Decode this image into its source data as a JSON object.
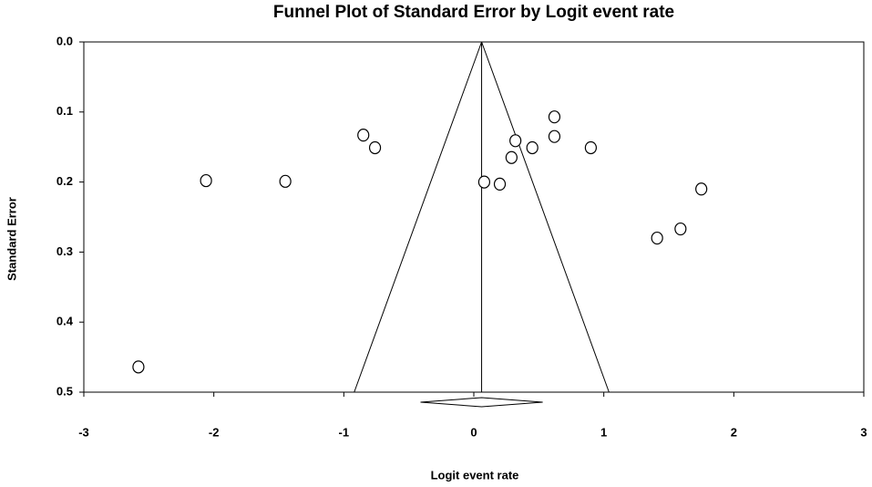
{
  "chart_data": {
    "type": "scatter",
    "title": "Funnel Plot of Standard Error by Logit event rate",
    "x_label": "Logit event rate",
    "y_label": "Standard Error",
    "xlim": [
      -3,
      3
    ],
    "ylim": [
      0,
      0.5
    ],
    "y_inverted": true,
    "xticks": [
      -3,
      -2,
      -1,
      0,
      1,
      2,
      3
    ],
    "yticks": [
      {
        "value": 0,
        "label": "0.0"
      },
      0.1,
      0.2,
      0.3,
      0.4,
      0.5
    ],
    "x": [
      -2.58,
      -2.06,
      -1.45,
      -0.85,
      -0.76,
      0.08,
      0.2,
      0.29,
      0.32,
      0.45,
      0.62,
      0.62,
      0.9,
      1.41,
      1.59,
      1.75
    ],
    "values": [
      0.464,
      0.198,
      0.199,
      0.133,
      0.151,
      0.2,
      0.203,
      0.165,
      0.141,
      0.151,
      0.107,
      0.135,
      0.151,
      0.28,
      0.267,
      0.21
    ],
    "summary": {
      "estimate": 0.06,
      "lower": -0.41,
      "upper": 0.53
    },
    "funnel_base": [
      -0.92,
      1.04
    ]
  }
}
